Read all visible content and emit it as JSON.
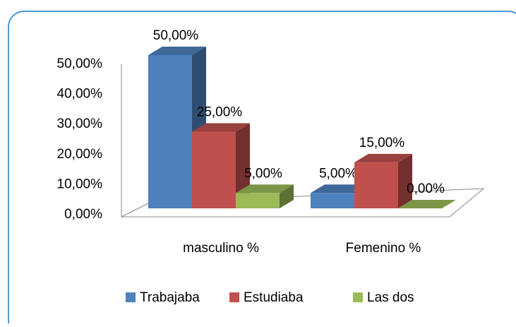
{
  "chart_data": {
    "type": "bar3d",
    "categories": [
      "masculino %",
      "Femenino %"
    ],
    "series": [
      {
        "name": "Trabajaba",
        "color": "#4f81bd",
        "values": [
          50,
          5
        ],
        "value_labels": [
          "50,00%",
          "5,00%"
        ]
      },
      {
        "name": "Estudiaba",
        "color": "#c0504d",
        "values": [
          25,
          15
        ],
        "value_labels": [
          "25,00%",
          "15,00%"
        ]
      },
      {
        "name": "Las dos",
        "color": "#9bbb59",
        "values": [
          5,
          0
        ],
        "value_labels": [
          "5,00%",
          "0,00%"
        ]
      }
    ],
    "ylim": [
      0,
      50
    ],
    "yticks": [
      {
        "value": 0,
        "label": "0,00%"
      },
      {
        "value": 10,
        "label": "10,00%"
      },
      {
        "value": 20,
        "label": "20,00%"
      },
      {
        "value": 30,
        "label": "30,00%"
      },
      {
        "value": 40,
        "label": "40,00%"
      },
      {
        "value": 50,
        "label": "50,00%"
      }
    ],
    "legend": "bottom"
  }
}
